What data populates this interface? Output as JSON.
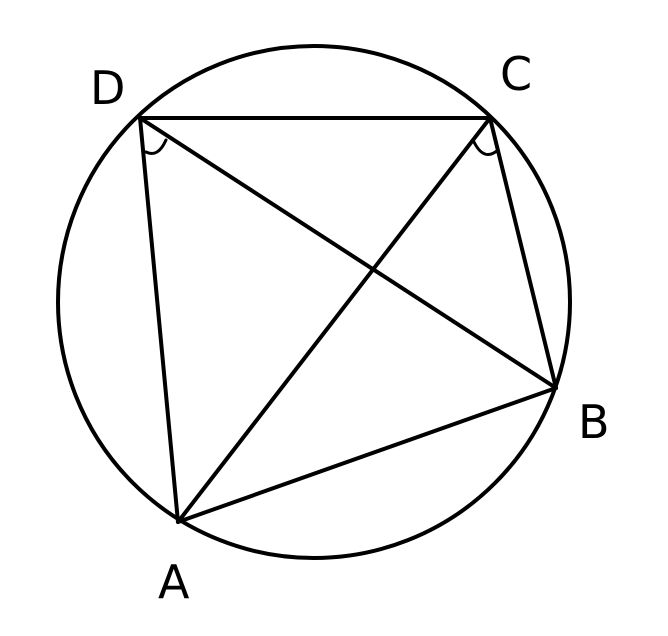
{
  "diagram": {
    "points": {
      "A": {
        "label": "A"
      },
      "B": {
        "label": "B"
      },
      "C": {
        "label": "C"
      },
      "D": {
        "label": "D"
      }
    },
    "segments": [
      "DC",
      "CB",
      "BA",
      "AD",
      "DB",
      "CA"
    ],
    "marked_angles": [
      "BDA",
      "ACB"
    ],
    "colors": {
      "stroke": "#000000",
      "background": "#ffffff"
    }
  }
}
